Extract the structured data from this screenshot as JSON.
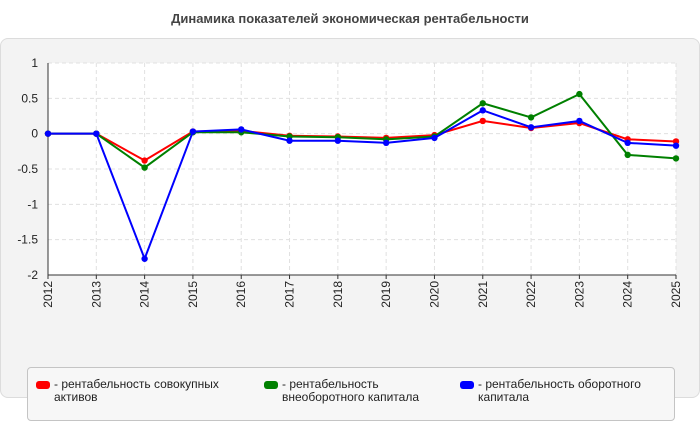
{
  "chart_data": {
    "type": "line",
    "title": "Динамика показателей экономическая рентабельности",
    "x": [
      "2012",
      "2013",
      "2014",
      "2015",
      "2016",
      "2017",
      "2018",
      "2019",
      "2020",
      "2021",
      "2022",
      "2023",
      "2024",
      "2025"
    ],
    "y_ticks": [
      "1",
      "0.5",
      "0",
      "-0.5",
      "-1",
      "-1.5",
      "-2"
    ],
    "ylim": [
      -2,
      1
    ],
    "grid": true,
    "legend_position": "bottom",
    "series": [
      {
        "name": "- рентабельность совокупных активов",
        "color": "#ff0000",
        "values": [
          0,
          0,
          -0.38,
          0.03,
          0.04,
          -0.03,
          -0.04,
          -0.06,
          -0.02,
          0.18,
          0.08,
          0.15,
          -0.08,
          -0.11
        ]
      },
      {
        "name": "- рентабельность внеоборотного капитала",
        "color": "#008000",
        "values": [
          0,
          0,
          -0.48,
          0.02,
          0.02,
          -0.04,
          -0.05,
          -0.08,
          -0.04,
          0.43,
          0.23,
          0.56,
          -0.3,
          -0.35
        ]
      },
      {
        "name": "- рентабельность оборотного капитала",
        "color": "#0000ff",
        "values": [
          0,
          0,
          -1.77,
          0.03,
          0.06,
          -0.1,
          -0.1,
          -0.13,
          -0.06,
          0.33,
          0.09,
          0.18,
          -0.13,
          -0.17
        ]
      }
    ]
  }
}
